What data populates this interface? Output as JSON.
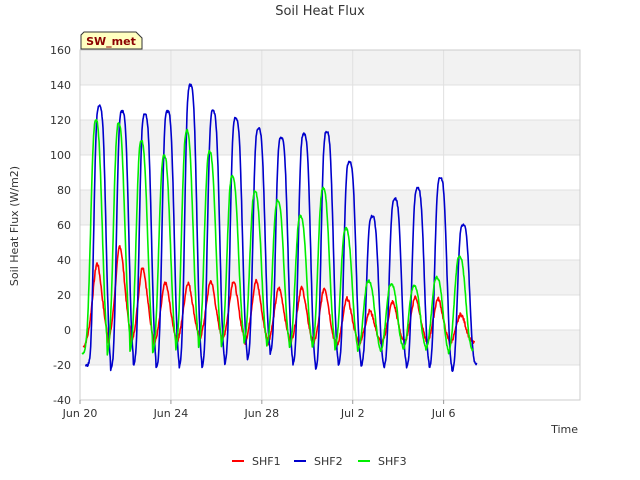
{
  "chart_data": {
    "type": "line",
    "title": "Soil Heat Flux",
    "xlabel": "Time",
    "ylabel": "Soil Heat Flux (W/m2)",
    "site_badge": "SW_met",
    "xlim": [
      0,
      22.0
    ],
    "ylim": [
      -40,
      160
    ],
    "yticks": [
      -40,
      -20,
      0,
      20,
      40,
      60,
      80,
      100,
      120,
      140,
      160
    ],
    "xticks": [
      {
        "day": 0,
        "label": "Jun 20"
      },
      {
        "day": 4,
        "label": "Jun 24"
      },
      {
        "day": 8,
        "label": "Jun 28"
      },
      {
        "day": 12,
        "label": "Jul 2"
      },
      {
        "day": 16,
        "label": "Jul 6"
      }
    ],
    "grid": true,
    "legend_position": "bottom-center",
    "colors": {
      "SHF1": "#ff0000",
      "SHF2": "#0000cc",
      "SHF3": "#00ee00"
    },
    "series": [
      {
        "name": "SHF1",
        "peak_day": [
          0.75,
          1.75,
          2.75,
          3.75,
          4.75,
          5.75,
          6.75,
          7.75,
          8.75,
          9.75,
          10.75,
          11.75,
          12.75,
          13.75,
          14.75,
          15.75,
          16.75
        ],
        "peaks": [
          38,
          48,
          36,
          27,
          27,
          28,
          28,
          28,
          24,
          24,
          24,
          18,
          11,
          16,
          19,
          18,
          9
        ],
        "troughs": [
          -10,
          -10,
          -11,
          -11,
          -10,
          -8,
          -9,
          -10,
          -10,
          -10,
          -11,
          -13,
          -10,
          -10,
          -10,
          -10,
          -10,
          -9
        ]
      },
      {
        "name": "SHF2",
        "peak_day": [
          0.85,
          1.85,
          2.85,
          3.85,
          4.85,
          5.85,
          6.85,
          7.85,
          8.85,
          9.85,
          10.85,
          11.85,
          12.85,
          13.85,
          14.85,
          15.85,
          16.85
        ],
        "peaks": [
          128,
          125,
          123,
          125,
          140,
          125,
          121,
          115,
          110,
          112,
          113,
          96,
          65,
          75,
          81,
          87,
          60
        ],
        "troughs": [
          -20,
          -23,
          -20,
          -22,
          -22,
          -22,
          -20,
          -17,
          -14,
          -20,
          -23,
          -21,
          -21,
          -22,
          -22,
          -22,
          -24,
          -20
        ]
      },
      {
        "name": "SHF3",
        "peak_day": [
          0.7,
          1.7,
          2.7,
          3.7,
          4.7,
          5.7,
          6.7,
          7.7,
          8.7,
          9.7,
          10.7,
          11.7,
          12.7,
          13.7,
          14.7,
          15.7,
          16.7
        ],
        "peaks": [
          120,
          118,
          108,
          100,
          114,
          102,
          88,
          79,
          74,
          65,
          81,
          58,
          28,
          26,
          25,
          30,
          42
        ],
        "troughs": [
          -13,
          -15,
          -13,
          -14,
          -13,
          -12,
          -11,
          -9,
          -11,
          -12,
          -12,
          -12,
          -13,
          -13,
          -12,
          -12,
          -14,
          -13
        ]
      }
    ]
  }
}
